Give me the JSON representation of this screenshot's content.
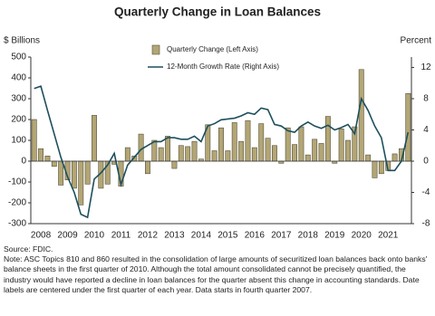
{
  "chart_data": {
    "type": "combo",
    "title": "Quarterly Change in Loan Balances",
    "y_label": "$ Billions",
    "y2_label": "Percent",
    "categories": [
      null,
      "2008",
      null,
      null,
      null,
      "2009",
      null,
      null,
      null,
      "2010",
      null,
      null,
      null,
      "2011",
      null,
      null,
      null,
      "2012",
      null,
      null,
      null,
      "2013",
      null,
      null,
      null,
      "2014",
      null,
      null,
      null,
      "2015",
      null,
      null,
      null,
      "2016",
      null,
      null,
      null,
      "2017",
      null,
      null,
      null,
      "2018",
      null,
      null,
      null,
      "2019",
      null,
      null,
      null,
      "2020",
      null,
      null,
      null,
      "2021",
      null,
      null,
      null
    ],
    "series": [
      {
        "name": "Quarterly Change (Left Axis)",
        "type": "bar",
        "axis": "y",
        "color": "#b3a675",
        "values": [
          200,
          60,
          25,
          -25,
          -115,
          -90,
          -130,
          -210,
          -110,
          220,
          -130,
          -110,
          -15,
          -120,
          65,
          25,
          130,
          -60,
          100,
          65,
          120,
          -35,
          75,
          70,
          95,
          10,
          175,
          50,
          160,
          50,
          185,
          95,
          195,
          65,
          180,
          110,
          75,
          -10,
          160,
          80,
          165,
          30,
          105,
          85,
          215,
          -10,
          155,
          100,
          165,
          440,
          30,
          -80,
          -60,
          -45,
          35,
          60,
          325
        ]
      },
      {
        "name": "12-Month Growth Rate (Right Axis)",
        "type": "line",
        "axis": "y2",
        "color": "#1d4f5c",
        "values": [
          9.3,
          9.6,
          6.5,
          3.5,
          0.5,
          -2,
          -4,
          -6.8,
          -7.2,
          -2.3,
          -1.5,
          -0.5,
          1,
          -3,
          -0.5,
          0.5,
          1.5,
          2,
          2.5,
          2.5,
          3,
          3,
          2.8,
          2.8,
          3.2,
          2.5,
          4.5,
          4.8,
          5.3,
          5.4,
          5.5,
          5.8,
          6.2,
          6,
          6.8,
          6.6,
          4.7,
          4.5,
          3.9,
          3.7,
          4.5,
          5,
          4.5,
          4.2,
          4.6,
          4,
          4.3,
          4.7,
          3.5,
          8,
          6.5,
          4.5,
          3,
          -1.2,
          -1.2,
          0,
          3.7
        ]
      }
    ],
    "ylim": [
      -300,
      500
    ],
    "yticks": [
      -300,
      -200,
      -100,
      0,
      100,
      200,
      300,
      400,
      500
    ],
    "y2lim": [
      -8,
      13.33
    ],
    "y2ticks": [
      -8,
      -4,
      0,
      4,
      8,
      12
    ],
    "legend": "top",
    "source": "Source: FDIC.",
    "note": "Note: ASC Topics 810 and 860 resulted in the consolidation of large amounts of securitized loan balances back onto banks' balance sheets in the first quarter of 2010.  Although the total amount consolidated cannot be precisely quantified, the industry would have reported a decline in loan balances for the quarter absent this change in accounting standards. Date labels are centered under the first quarter of each year. Data starts in fourth quarter 2007."
  }
}
